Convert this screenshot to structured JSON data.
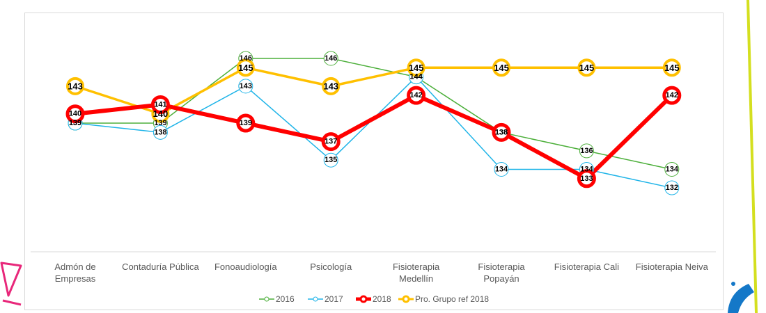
{
  "chart_data": {
    "type": "line",
    "title": "",
    "xlabel": "",
    "ylabel": "",
    "ylim": [
      128,
      148
    ],
    "grid": false,
    "legend_position": "bottom",
    "categories": [
      [
        "Admón de",
        "Empresas"
      ],
      [
        "Contaduría Pública"
      ],
      [
        "Fonoaudiología"
      ],
      [
        "Psicología"
      ],
      [
        "Fisioterapia",
        "Medellín"
      ],
      [
        "Fisioterapia",
        "Popayán"
      ],
      [
        "Fisioterapia Cali"
      ],
      [
        "Fisioterapia Neiva"
      ]
    ],
    "series": [
      {
        "name": "2016",
        "color": "#4caf3a",
        "values": [
          139,
          139,
          146,
          146,
          144,
          138,
          136,
          134
        ]
      },
      {
        "name": "2017",
        "color": "#1eb4e8",
        "values": [
          139,
          138,
          143,
          135,
          144,
          134,
          134,
          132
        ]
      },
      {
        "name": "2018",
        "color": "#ff0000",
        "values": [
          140,
          141,
          139,
          137,
          142,
          138,
          133,
          142
        ]
      },
      {
        "name": "Pro. Grupo ref 2018",
        "color": "#ffc000",
        "values": [
          143,
          140,
          145,
          143,
          145,
          145,
          145,
          145
        ]
      }
    ]
  },
  "decorations": {
    "accent_pink": "#e8277a",
    "accent_yellow": "#d4df1f",
    "accent_blue": "#1478c8"
  }
}
